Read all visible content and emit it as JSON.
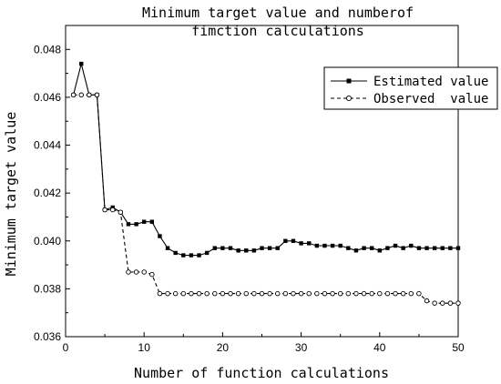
{
  "chart_data": {
    "type": "line",
    "title_line1": "Minimum target value and numberof",
    "title_line2": "fimction calculations",
    "xlabel": "Number of function calculations",
    "ylabel": "Minimum target value",
    "xlim": [
      0,
      50
    ],
    "ylim": [
      0.036,
      0.049
    ],
    "x_ticks": [
      0,
      10,
      20,
      30,
      40,
      50
    ],
    "y_ticks": [
      0.036,
      0.038,
      0.04,
      0.042,
      0.044,
      0.046,
      0.048
    ],
    "y_tick_labels": [
      "0.036",
      "0.038",
      "0.040",
      "0.042",
      "0.044",
      "0.046",
      "0.048"
    ],
    "grid": false,
    "legend_position": "top-right",
    "series": [
      {
        "name": "Estimated value",
        "style": "solid-square",
        "color": "#000000",
        "x": [
          1,
          2,
          3,
          4,
          5,
          6,
          7,
          8,
          9,
          10,
          11,
          12,
          13,
          14,
          15,
          16,
          17,
          18,
          19,
          20,
          21,
          22,
          23,
          24,
          25,
          26,
          27,
          28,
          29,
          30,
          31,
          32,
          33,
          34,
          35,
          36,
          37,
          38,
          39,
          40,
          41,
          42,
          43,
          44,
          45,
          46,
          47,
          48,
          49,
          50
        ],
        "values": [
          0.0461,
          0.0474,
          0.0461,
          0.0461,
          0.0413,
          0.0414,
          0.0412,
          0.0407,
          0.0407,
          0.0408,
          0.0408,
          0.0402,
          0.0397,
          0.0395,
          0.0394,
          0.0394,
          0.0394,
          0.0395,
          0.0397,
          0.0397,
          0.0397,
          0.0396,
          0.0396,
          0.0396,
          0.0397,
          0.0397,
          0.0397,
          0.04,
          0.04,
          0.0399,
          0.0399,
          0.0398,
          0.0398,
          0.0398,
          0.0398,
          0.0397,
          0.0396,
          0.0397,
          0.0397,
          0.0396,
          0.0397,
          0.0398,
          0.0397,
          0.0398,
          0.0397,
          0.0397,
          0.0397,
          0.0397,
          0.0397,
          0.0397
        ]
      },
      {
        "name": "Observed  value",
        "style": "dashed-circle",
        "color": "#000000",
        "x": [
          1,
          2,
          3,
          4,
          5,
          6,
          7,
          8,
          9,
          10,
          11,
          12,
          13,
          14,
          15,
          16,
          17,
          18,
          19,
          20,
          21,
          22,
          23,
          24,
          25,
          26,
          27,
          28,
          29,
          30,
          31,
          32,
          33,
          34,
          35,
          36,
          37,
          38,
          39,
          40,
          41,
          42,
          43,
          44,
          45,
          46,
          47,
          48,
          49,
          50
        ],
        "values": [
          0.0461,
          0.0461,
          0.0461,
          0.0461,
          0.0413,
          0.0413,
          0.0412,
          0.0387,
          0.0387,
          0.0387,
          0.0386,
          0.0378,
          0.0378,
          0.0378,
          0.0378,
          0.0378,
          0.0378,
          0.0378,
          0.0378,
          0.0378,
          0.0378,
          0.0378,
          0.0378,
          0.0378,
          0.0378,
          0.0378,
          0.0378,
          0.0378,
          0.0378,
          0.0378,
          0.0378,
          0.0378,
          0.0378,
          0.0378,
          0.0378,
          0.0378,
          0.0378,
          0.0378,
          0.0378,
          0.0378,
          0.0378,
          0.0378,
          0.0378,
          0.0378,
          0.0378,
          0.0375,
          0.0374,
          0.0374,
          0.0374,
          0.0374
        ]
      }
    ]
  }
}
